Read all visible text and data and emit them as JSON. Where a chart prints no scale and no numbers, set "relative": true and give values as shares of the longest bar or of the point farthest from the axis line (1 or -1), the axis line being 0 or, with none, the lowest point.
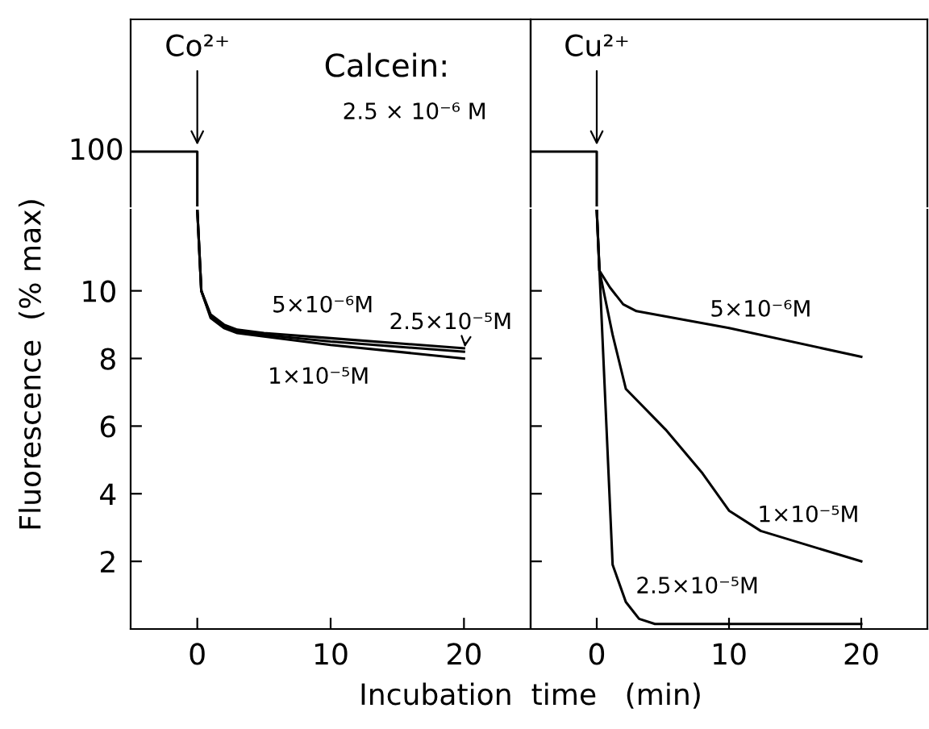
{
  "chart_data": [
    {
      "type": "line",
      "relative": true,
      "xlim": [
        -5,
        25
      ],
      "tick_labels": false,
      "grid": false,
      "legend": false,
      "marker": "none",
      "line_style": "solid",
      "annotations": [
        {
          "text": "Co²⁺",
          "x": 0,
          "y": 1
        },
        "Calcein:",
        "2.5 × 10⁻⁶ M",
        "100"
      ],
      "series": [
        {
          "color": "#000000",
          "x": [
            -5,
            0,
            0
          ],
          "values": [
            1,
            1,
            0
          ]
        }
      ]
    },
    {
      "type": "line",
      "relative": true,
      "xlim": [
        -5,
        25
      ],
      "tick_labels": false,
      "grid": false,
      "legend": false,
      "marker": "none",
      "line_style": "solid",
      "annotations": [
        {
          "text": "Cu²⁺",
          "x": 0,
          "y": 1
        }
      ],
      "series": [
        {
          "color": "#000000",
          "x": [
            -5,
            0,
            0
          ],
          "values": [
            1,
            1,
            0
          ]
        }
      ]
    },
    {
      "type": "line",
      "xlim": [
        -5,
        25
      ],
      "ylim": [
        0,
        12.4
      ],
      "xticks": [
        0,
        10,
        20
      ],
      "yticks": [
        2,
        4,
        6,
        8,
        10
      ],
      "ylabel": "Fluorescence  (% max)",
      "xlabel": "Incubation  time   (min)",
      "grid": false,
      "legend": false,
      "marker": "none",
      "line_style": "solid",
      "series": [
        {
          "name": "5×10⁻⁶M",
          "color": "#000000",
          "x": [
            0,
            0.3,
            1,
            2,
            3,
            5,
            10,
            20
          ],
          "values": [
            12.4,
            10,
            9.3,
            9.0,
            8.85,
            8.75,
            8.6,
            8.3
          ]
        },
        {
          "name": "2.5×10⁻⁵M",
          "color": "#000000",
          "x": [
            0,
            0.3,
            1,
            2,
            3,
            5,
            10,
            20
          ],
          "values": [
            12.4,
            10,
            9.25,
            8.95,
            8.8,
            8.7,
            8.5,
            8.2
          ]
        },
        {
          "name": "1×10⁻⁵M",
          "color": "#000000",
          "x": [
            0,
            0.3,
            1,
            2,
            3,
            5,
            10,
            20
          ],
          "values": [
            12.4,
            10,
            9.2,
            8.9,
            8.75,
            8.65,
            8.4,
            8.0
          ]
        }
      ]
    },
    {
      "type": "line",
      "xlim": [
        -5,
        25
      ],
      "ylim": [
        0,
        12.4
      ],
      "xticks": [
        0,
        10,
        20
      ],
      "yticks": [
        2,
        4,
        6,
        8,
        10
      ],
      "tick_labels": "x",
      "grid": false,
      "legend": false,
      "marker": "none",
      "line_style": "solid",
      "series": [
        {
          "name": "5×10⁻⁶M",
          "color": "#000000",
          "x": [
            0,
            0.2,
            1,
            2,
            3,
            10,
            20
          ],
          "values": [
            12.4,
            10.6,
            10.1,
            9.6,
            9.4,
            8.9,
            8.05
          ]
        },
        {
          "name": "1×10⁻⁵M",
          "color": "#000000",
          "x": [
            0,
            0.2,
            1.2,
            2.2,
            5.2,
            8,
            10,
            12.4,
            20
          ],
          "values": [
            12.4,
            10.6,
            8.7,
            7.1,
            5.9,
            4.6,
            3.5,
            2.9,
            2.0
          ]
        },
        {
          "name": "2.5×10⁻⁵M",
          "color": "#000000",
          "x": [
            0,
            1.2,
            2.2,
            3.2,
            4.4,
            20
          ],
          "values": [
            12.4,
            1.9,
            0.8,
            0.3,
            0.15,
            0.15
          ]
        }
      ]
    }
  ]
}
